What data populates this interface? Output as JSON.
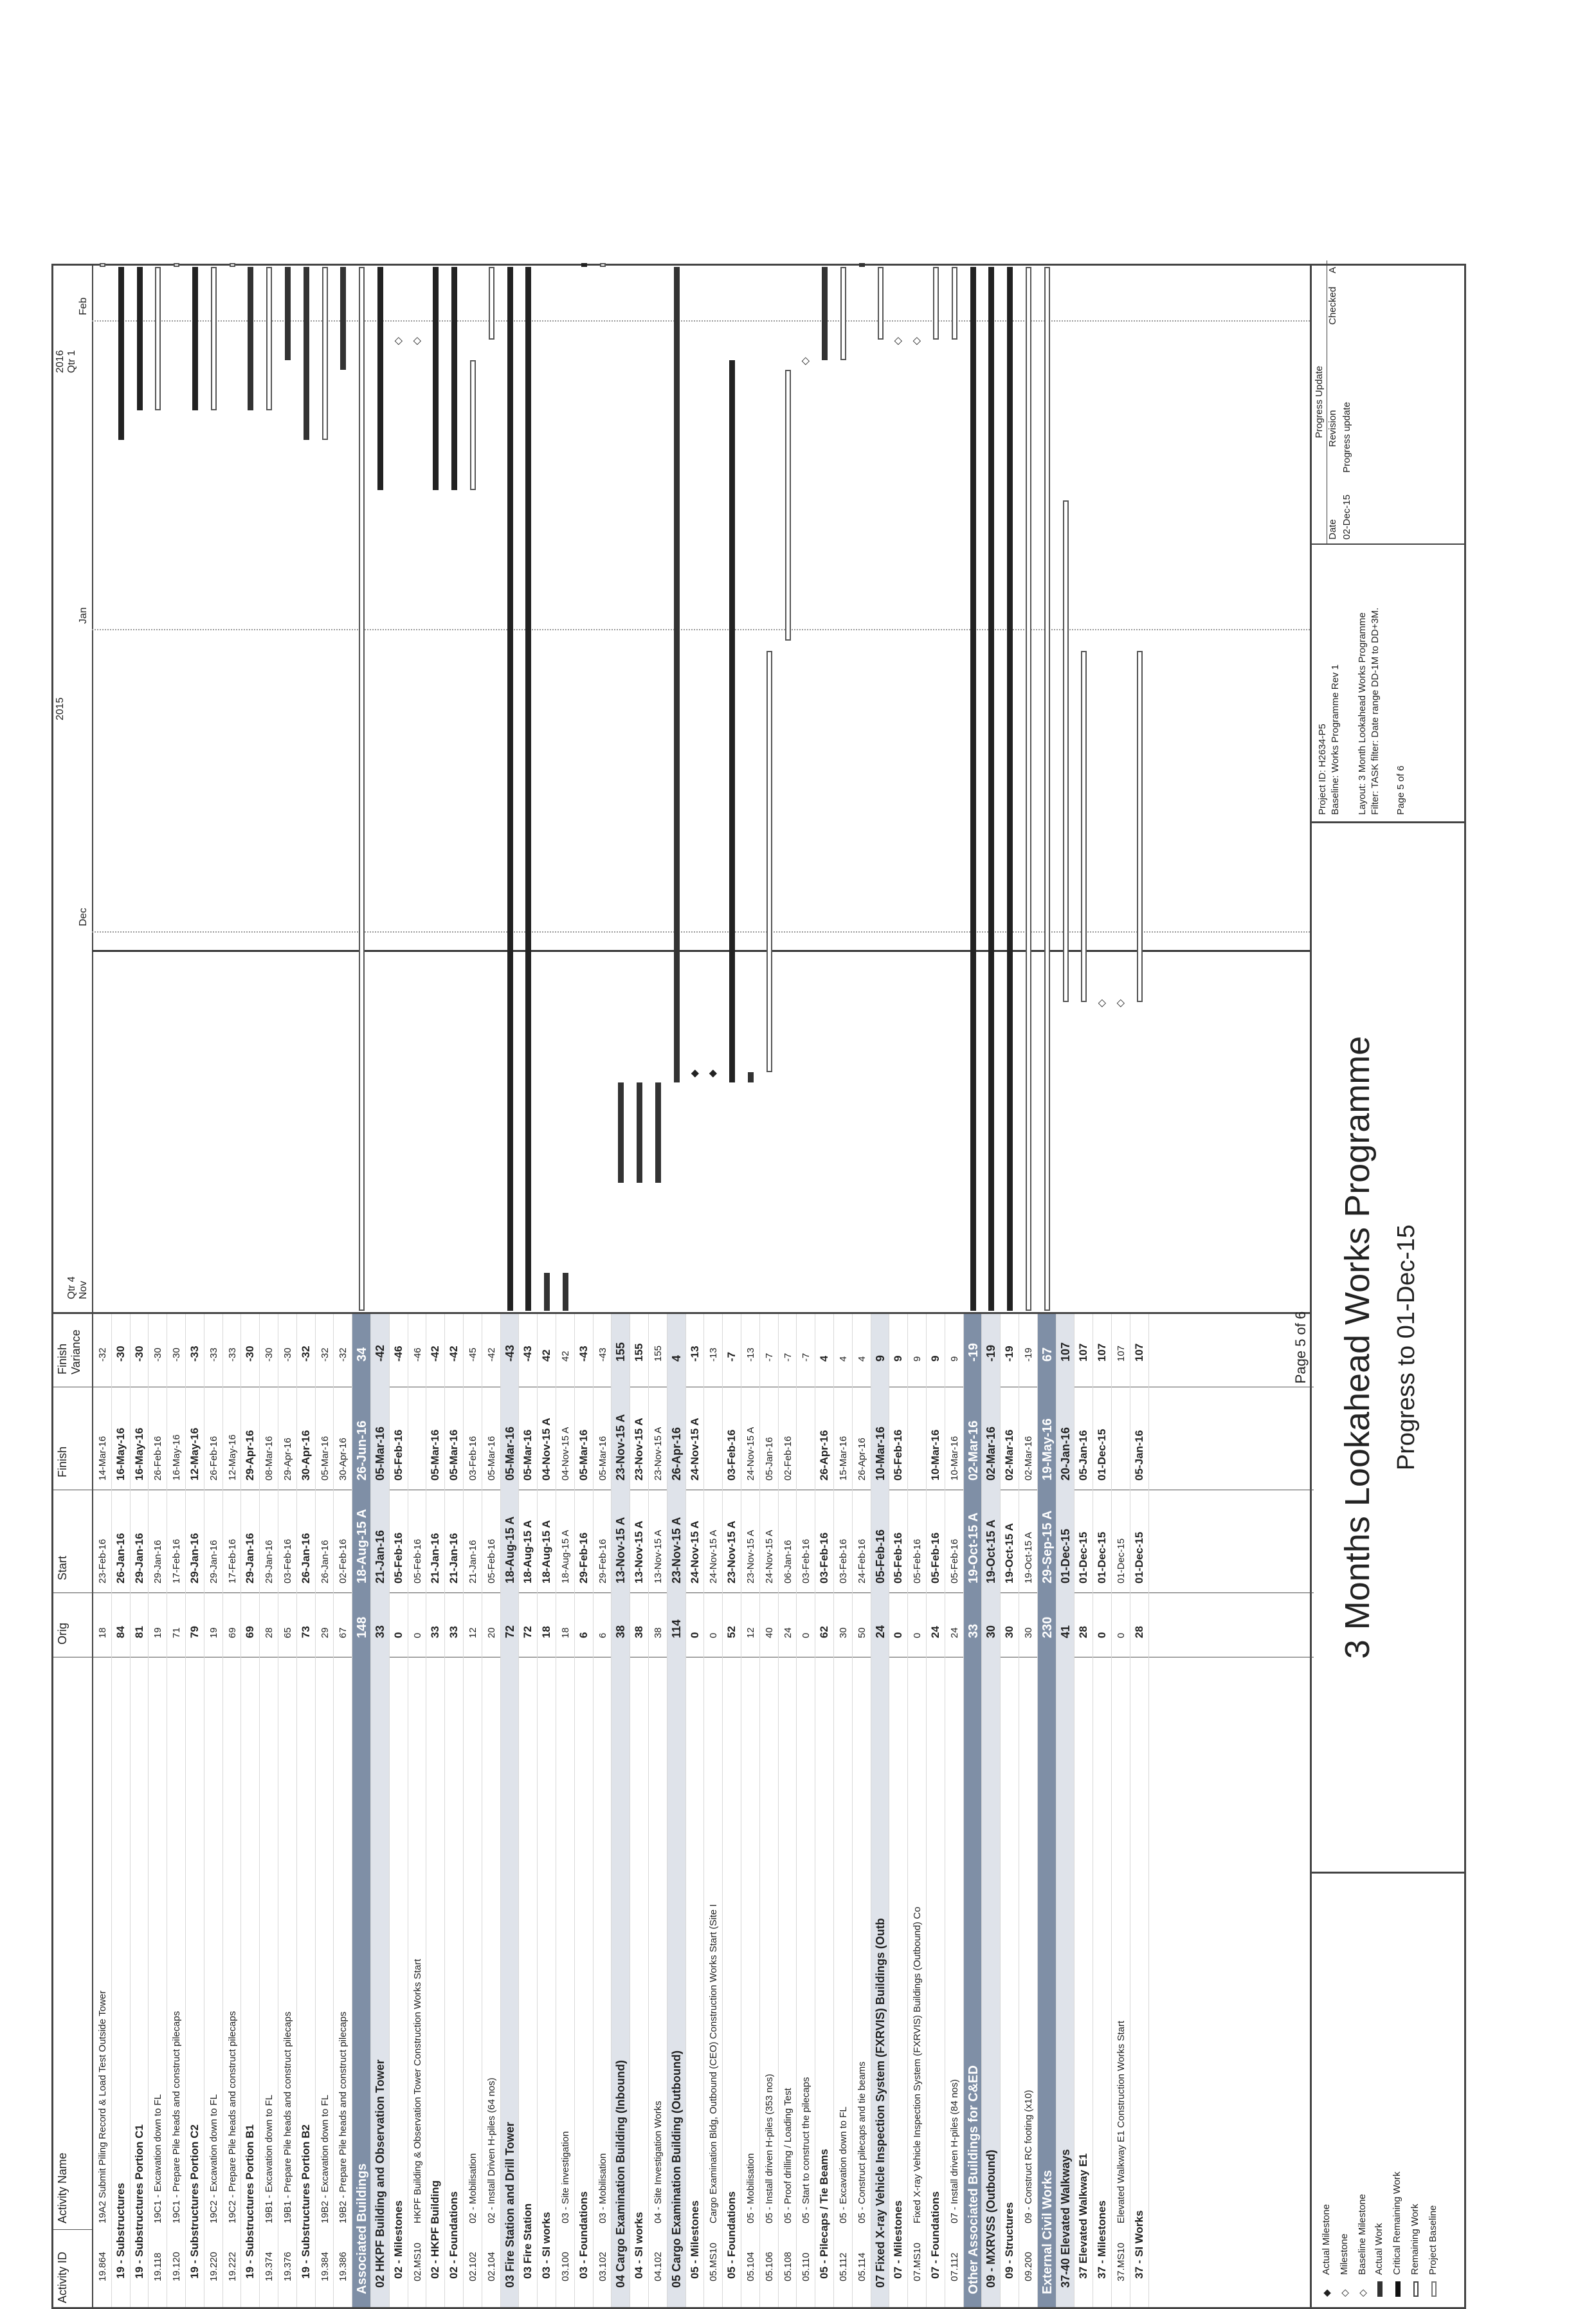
{
  "columns": {
    "id": "Activity ID",
    "name": "Activity Name",
    "orig": "Orig",
    "start": "Start",
    "finish": "Finish",
    "variance": "Finish Variance"
  },
  "timeline": {
    "years": [
      "2015",
      "2016"
    ],
    "quarters": [
      "Qtr 4",
      "Qtr 1"
    ],
    "months": [
      "Nov",
      "Dec",
      "Jan",
      "Feb"
    ]
  },
  "rows": [
    {
      "level": "a",
      "id": "19.864",
      "name": "19A2 Submit Piling Record & Load Test Outside Tower",
      "orig": "18",
      "start": "23-Feb-16",
      "finish": "14-Mar-16",
      "var": "-32"
    },
    {
      "level": "g3",
      "name": "19 - Substructures",
      "orig": "84",
      "start": "26-Jan-16",
      "finish": "16-May-16",
      "var": "-30"
    },
    {
      "level": "g3",
      "name": "19 - Substructures Portion C1",
      "orig": "81",
      "start": "29-Jan-16",
      "finish": "16-May-16",
      "var": "-30"
    },
    {
      "level": "a",
      "id": "19.118",
      "name": "19C1 - Excavation down to FL",
      "orig": "19",
      "start": "29-Jan-16",
      "finish": "26-Feb-16",
      "var": "-30"
    },
    {
      "level": "a",
      "id": "19.120",
      "name": "19C1 - Prepare Pile heads and construct pilecaps",
      "orig": "71",
      "start": "17-Feb-16",
      "finish": "16-May-16",
      "var": "-30"
    },
    {
      "level": "g3",
      "name": "19 - Substructures Portion C2",
      "orig": "79",
      "start": "29-Jan-16",
      "finish": "12-May-16",
      "var": "-33"
    },
    {
      "level": "a",
      "id": "19.220",
      "name": "19C2 - Excavation down to FL",
      "orig": "19",
      "start": "29-Jan-16",
      "finish": "26-Feb-16",
      "var": "-33"
    },
    {
      "level": "a",
      "id": "19.222",
      "name": "19C2 - Prepare Pile heads and construct pilecaps",
      "orig": "69",
      "start": "17-Feb-16",
      "finish": "12-May-16",
      "var": "-33"
    },
    {
      "level": "g3",
      "name": "19 - Substructures Portion B1",
      "orig": "69",
      "start": "29-Jan-16",
      "finish": "29-Apr-16",
      "var": "-30"
    },
    {
      "level": "a",
      "id": "19.374",
      "name": "19B1 - Excavation down to FL",
      "orig": "28",
      "start": "29-Jan-16",
      "finish": "08-Mar-16",
      "var": "-30"
    },
    {
      "level": "a",
      "id": "19.376",
      "name": "19B1 - Prepare Pile heads and construct pilecaps",
      "orig": "65",
      "start": "03-Feb-16",
      "finish": "29-Apr-16",
      "var": "-30"
    },
    {
      "level": "g3",
      "name": "19 - Substructures Portion B2",
      "orig": "73",
      "start": "26-Jan-16",
      "finish": "30-Apr-16",
      "var": "-32"
    },
    {
      "level": "a",
      "id": "19.384",
      "name": "19B2 - Excavation down to FL",
      "orig": "29",
      "start": "26-Jan-16",
      "finish": "05-Mar-16",
      "var": "-32"
    },
    {
      "level": "a",
      "id": "19.386",
      "name": "19B2 - Prepare Pile heads and construct pilecaps",
      "orig": "67",
      "start": "02-Feb-16",
      "finish": "30-Apr-16",
      "var": "-32"
    },
    {
      "level": "g1",
      "name": "Associated Buildings",
      "orig": "148",
      "start": "18-Aug-15 A",
      "finish": "26-Jun-16",
      "var": "34"
    },
    {
      "level": "g2",
      "name": "02 HKPF Building and Observation Tower",
      "orig": "33",
      "start": "21-Jan-16",
      "finish": "05-Mar-16",
      "var": "-42"
    },
    {
      "level": "g3",
      "name": "02 - Milestones",
      "orig": "0",
      "start": "05-Feb-16",
      "finish": "05-Feb-16",
      "var": "-46"
    },
    {
      "level": "a",
      "id": "02.MS10",
      "name": "HKPF Building & Observation Tower Construction Works Start",
      "orig": "0",
      "start": "05-Feb-16",
      "finish": "",
      "var": "-46"
    },
    {
      "level": "g3",
      "name": "02 - HKPF Building",
      "orig": "33",
      "start": "21-Jan-16",
      "finish": "05-Mar-16",
      "var": "-42"
    },
    {
      "level": "g3",
      "name": "02 - Foundations",
      "orig": "33",
      "start": "21-Jan-16",
      "finish": "05-Mar-16",
      "var": "-42"
    },
    {
      "level": "a",
      "id": "02.102",
      "name": "02 - Mobilisation",
      "orig": "12",
      "start": "21-Jan-16",
      "finish": "03-Feb-16",
      "var": "-45"
    },
    {
      "level": "a",
      "id": "02.104",
      "name": "02 - Install Driven H-piles (64 nos)",
      "orig": "20",
      "start": "05-Feb-16",
      "finish": "05-Mar-16",
      "var": "-42"
    },
    {
      "level": "g2",
      "name": "03 Fire Station and Drill Tower",
      "orig": "72",
      "start": "18-Aug-15 A",
      "finish": "05-Mar-16",
      "var": "-43"
    },
    {
      "level": "g3",
      "name": "03 Fire Station",
      "orig": "72",
      "start": "18-Aug-15 A",
      "finish": "05-Mar-16",
      "var": "-43"
    },
    {
      "level": "g3",
      "name": "03 - SI works",
      "orig": "18",
      "start": "18-Aug-15 A",
      "finish": "04-Nov-15 A",
      "var": "42"
    },
    {
      "level": "a",
      "id": "03.100",
      "name": "03 - Site investigation",
      "orig": "18",
      "start": "18-Aug-15 A",
      "finish": "04-Nov-15 A",
      "var": "42"
    },
    {
      "level": "g3",
      "name": "03 - Foundations",
      "orig": "6",
      "start": "29-Feb-16",
      "finish": "05-Mar-16",
      "var": "-43"
    },
    {
      "level": "a",
      "id": "03.102",
      "name": "03 - Mobilisation",
      "orig": "6",
      "start": "29-Feb-16",
      "finish": "05-Mar-16",
      "var": "-43"
    },
    {
      "level": "g2",
      "name": "04 Cargo Examination Building (Inbound)",
      "orig": "38",
      "start": "13-Nov-15 A",
      "finish": "23-Nov-15 A",
      "var": "155"
    },
    {
      "level": "g3",
      "name": "04 - SI works",
      "orig": "38",
      "start": "13-Nov-15 A",
      "finish": "23-Nov-15 A",
      "var": "155"
    },
    {
      "level": "a",
      "id": "04.102",
      "name": "04 - Site Investigation Works",
      "orig": "38",
      "start": "13-Nov-15 A",
      "finish": "23-Nov-15 A",
      "var": "155"
    },
    {
      "level": "g2",
      "name": "05 Cargo Examination Building (Outbound)",
      "orig": "114",
      "start": "23-Nov-15 A",
      "finish": "26-Apr-16",
      "var": "4"
    },
    {
      "level": "g3",
      "name": "05 - Milestones",
      "orig": "0",
      "start": "24-Nov-15 A",
      "finish": "24-Nov-15 A",
      "var": "-13"
    },
    {
      "level": "a",
      "id": "05.MS10",
      "name": "Cargo Examination Bldg, Outbound (CEO) Construction Works Start (Site I",
      "orig": "0",
      "start": "24-Nov-15 A",
      "finish": "",
      "var": "-13"
    },
    {
      "level": "g3",
      "name": "05 - Foundations",
      "orig": "52",
      "start": "23-Nov-15 A",
      "finish": "03-Feb-16",
      "var": "-7"
    },
    {
      "level": "a",
      "id": "05.104",
      "name": "05 - Mobilisation",
      "orig": "12",
      "start": "23-Nov-15 A",
      "finish": "24-Nov-15 A",
      "var": "-13"
    },
    {
      "level": "a",
      "id": "05.106",
      "name": "05 - Install driven H-piles (353 nos)",
      "orig": "40",
      "start": "24-Nov-15 A",
      "finish": "05-Jan-16",
      "var": "-7"
    },
    {
      "level": "a",
      "id": "05.108",
      "name": "05 - Proof drilling / Loading Test",
      "orig": "24",
      "start": "06-Jan-16",
      "finish": "02-Feb-16",
      "var": "-7"
    },
    {
      "level": "a",
      "id": "05.110",
      "name": "05 - Start to construct the pilecaps",
      "orig": "0",
      "start": "03-Feb-16",
      "finish": "",
      "var": "-7"
    },
    {
      "level": "g3",
      "name": "05 - Pilecaps / Tie Beams",
      "orig": "62",
      "start": "03-Feb-16",
      "finish": "26-Apr-16",
      "var": "4"
    },
    {
      "level": "a",
      "id": "05.112",
      "name": "05 - Excavation down to FL",
      "orig": "30",
      "start": "03-Feb-16",
      "finish": "15-Mar-16",
      "var": "4"
    },
    {
      "level": "a",
      "id": "05.114",
      "name": "05 - Construct pilecaps and tie beams",
      "orig": "50",
      "start": "24-Feb-16",
      "finish": "26-Apr-16",
      "var": "4"
    },
    {
      "level": "g2",
      "name": "07 Fixed X-ray Vehicle Inspection System (FXRVIS) Buildings (Outb",
      "orig": "24",
      "start": "05-Feb-16",
      "finish": "10-Mar-16",
      "var": "9"
    },
    {
      "level": "g3",
      "name": "07 - Milestones",
      "orig": "0",
      "start": "05-Feb-16",
      "finish": "05-Feb-16",
      "var": "9"
    },
    {
      "level": "a",
      "id": "07.MS10",
      "name": "Fixed X-ray Vehicle Inspection System (FXRVIS) Buildings (Outbound) Co",
      "orig": "0",
      "start": "05-Feb-16",
      "finish": "",
      "var": "9"
    },
    {
      "level": "g3",
      "name": "07 - Foundations",
      "orig": "24",
      "start": "05-Feb-16",
      "finish": "10-Mar-16",
      "var": "9"
    },
    {
      "level": "a",
      "id": "07.112",
      "name": "07 - Install driven H-piles (84 nos)",
      "orig": "24",
      "start": "05-Feb-16",
      "finish": "10-Mar-16",
      "var": "9"
    },
    {
      "level": "g1",
      "name": "Other Associated Buildings for C&ED",
      "orig": "33",
      "start": "19-Oct-15 A",
      "finish": "02-Mar-16",
      "var": "-19"
    },
    {
      "level": "g2",
      "name": "09 - MXRVSS (Outbound)",
      "orig": "30",
      "start": "19-Oct-15 A",
      "finish": "02-Mar-16",
      "var": "-19"
    },
    {
      "level": "g3",
      "name": "09 - Structures",
      "orig": "30",
      "start": "19-Oct-15 A",
      "finish": "02-Mar-16",
      "var": "-19"
    },
    {
      "level": "a",
      "id": "09.200",
      "name": "09 - Construct RC footing (x10)",
      "orig": "30",
      "start": "19-Oct-15 A",
      "finish": "02-Mar-16",
      "var": "-19"
    },
    {
      "level": "g1",
      "name": "External Civil Works",
      "orig": "230",
      "start": "29-Sep-15 A",
      "finish": "19-May-16",
      "var": "67"
    },
    {
      "level": "g2",
      "name": "37-40 Elevated Walkways",
      "orig": "41",
      "start": "01-Dec-15",
      "finish": "20-Jan-16",
      "var": "107"
    },
    {
      "level": "g3",
      "name": "37 Elevated Walkway E1",
      "orig": "28",
      "start": "01-Dec-15",
      "finish": "05-Jan-16",
      "var": "107"
    },
    {
      "level": "g3",
      "name": "37 - Milestones",
      "orig": "0",
      "start": "01-Dec-15",
      "finish": "01-Dec-15",
      "var": "107"
    },
    {
      "level": "a",
      "id": "37.MS10",
      "name": "Elevated Walkway E1 Construction Works Start",
      "orig": "0",
      "start": "01-Dec-15",
      "finish": "",
      "var": "107"
    },
    {
      "level": "g3",
      "name": "37 - SI Works",
      "orig": "28",
      "start": "01-Dec-15",
      "finish": "05-Jan-16",
      "var": "107"
    }
  ],
  "legend": [
    "Actual Milestone",
    "Milestone",
    "Baseline Milestone",
    "Actual Work",
    "Critical Remaining Work",
    "Remaining Work",
    "Project Baseline"
  ],
  "page": "Page 5 of 6",
  "title": "3 Months Lookahead Works Programme",
  "subtitle": "Progress to 01-Dec-15",
  "project": {
    "id": "Project ID: H2634-P5",
    "baseline": "Baseline: Works Programme Rev 1",
    "layout": "Layout: 3 Month Lookahead Works Programme",
    "filter": "Filter: TASK filter: Date range DD-1M to DD+3M.",
    "page": "Page 5 of 6"
  },
  "revision": {
    "header": "Progress Update",
    "cols": [
      "Date",
      "Revision",
      "Checked",
      "A"
    ],
    "date": "02-Dec-15",
    "revision": "Progress update"
  }
}
